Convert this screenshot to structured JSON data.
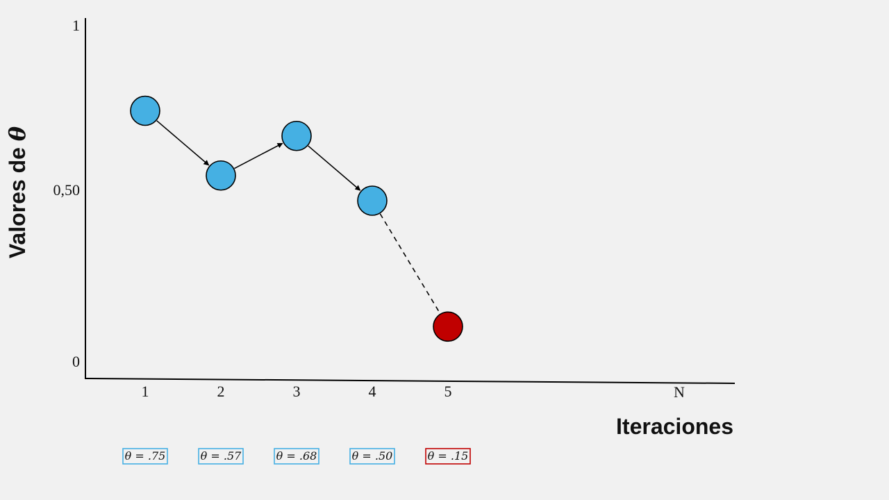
{
  "chart_data": {
    "type": "line",
    "ylabel_prefix": "Valores de ",
    "ylabel_symbol": "θ",
    "xlabel": "Iteraciones",
    "x_tick_labels": [
      "1",
      "2",
      "3",
      "4",
      "5",
      "N"
    ],
    "y_tick_labels": [
      "1",
      "0,50",
      "0"
    ],
    "ylim": [
      0,
      1
    ],
    "grid": false,
    "points": [
      {
        "x": "1",
        "y": 0.75,
        "label": "θ = .75",
        "color": "#45b0e3"
      },
      {
        "x": "2",
        "y": 0.57,
        "label": "θ = .57",
        "color": "#45b0e3"
      },
      {
        "x": "3",
        "y": 0.68,
        "label": "θ = .68",
        "color": "#45b0e3"
      },
      {
        "x": "4",
        "y": 0.5,
        "label": "θ = .50",
        "color": "#45b0e3"
      },
      {
        "x": "5",
        "y": 0.15,
        "label": "θ = .15",
        "color": "#c00000"
      }
    ],
    "connectors": [
      {
        "from": 0,
        "to": 1,
        "style": "solid-arrow"
      },
      {
        "from": 1,
        "to": 2,
        "style": "solid-arrow"
      },
      {
        "from": 2,
        "to": 3,
        "style": "solid-arrow"
      },
      {
        "from": 3,
        "to": 4,
        "style": "dashed"
      }
    ],
    "colors": {
      "normal": "#45b0e3",
      "highlight": "#c00000",
      "box_normal": "#45b0e3",
      "box_highlight": "#c00000"
    }
  }
}
